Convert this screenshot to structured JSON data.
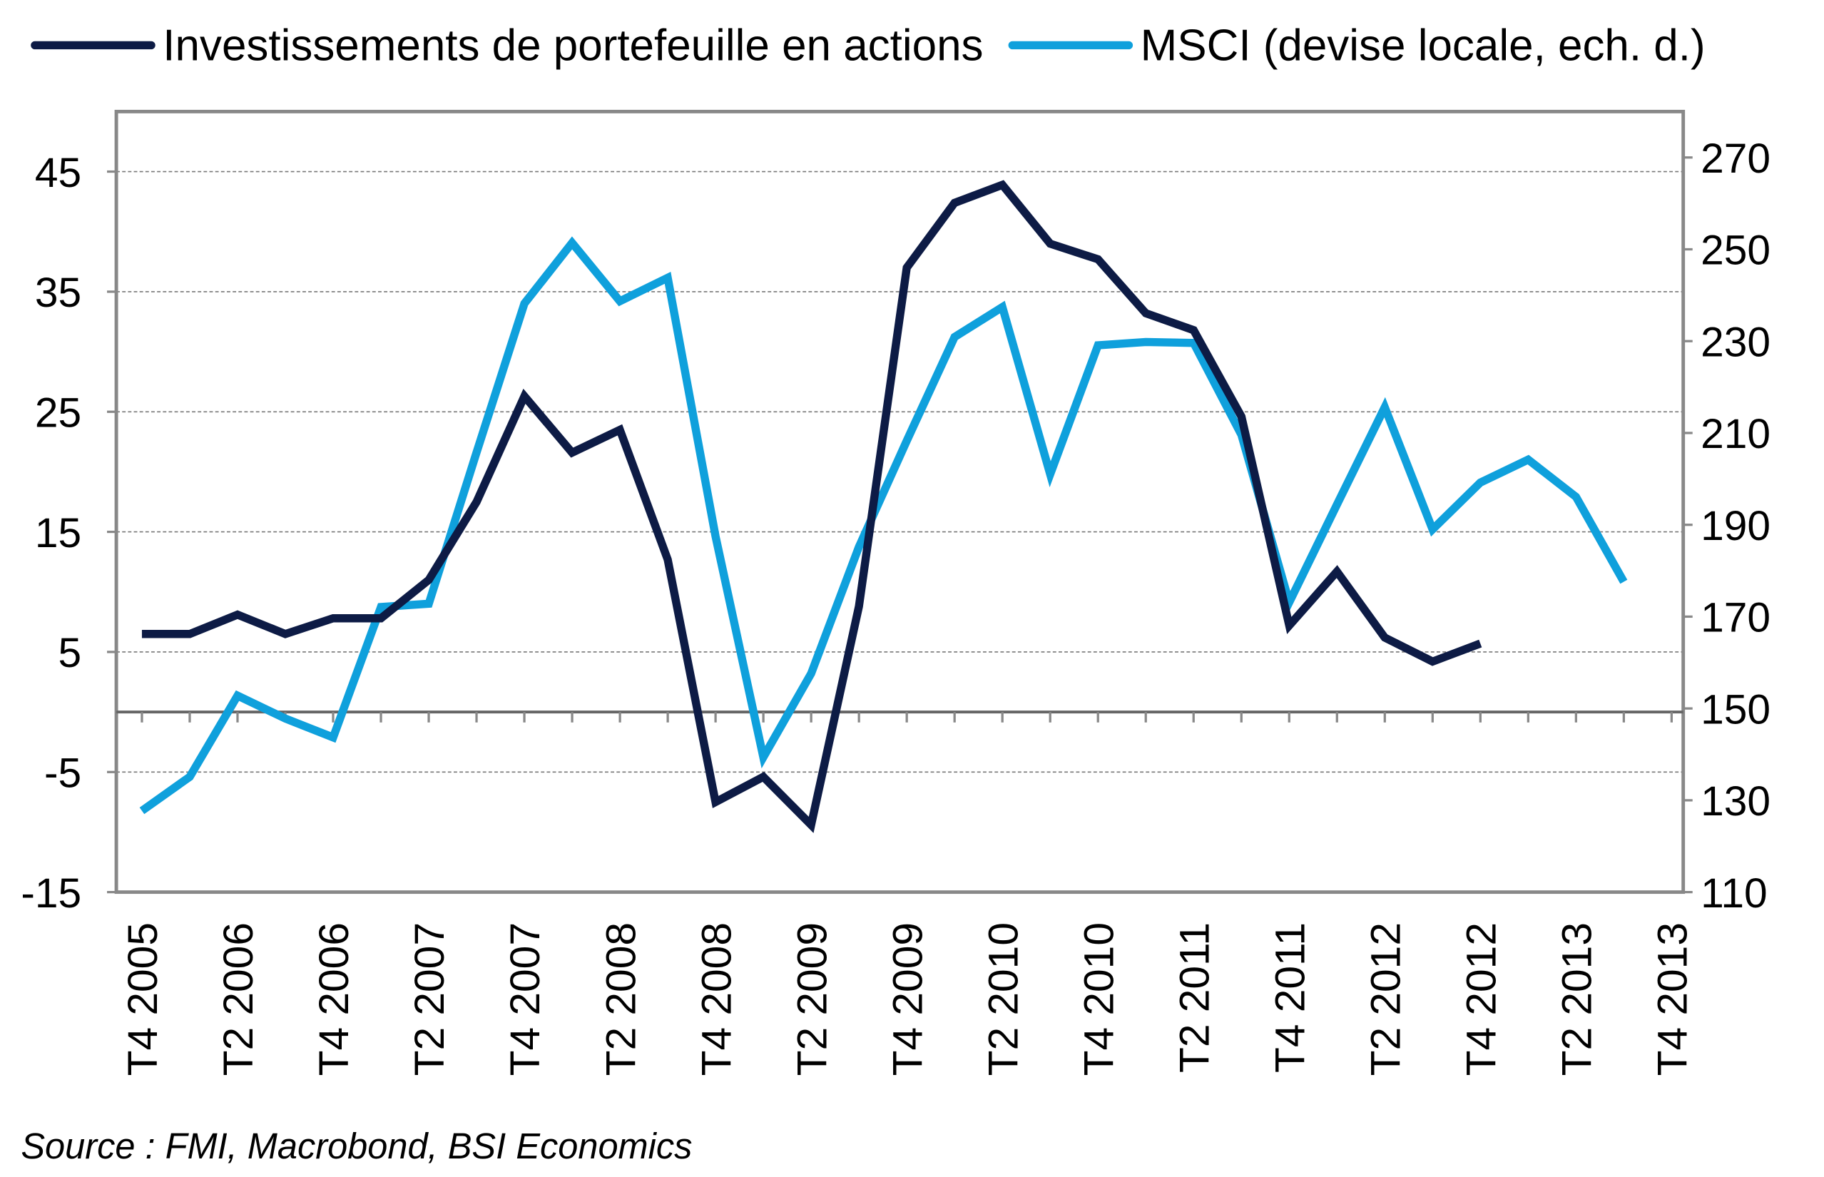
{
  "chart_data": {
    "type": "line",
    "categories": [
      "T4 2005",
      null,
      "T2 2006",
      null,
      "T4 2006",
      null,
      "T2 2007",
      null,
      "T4 2007",
      null,
      "T2 2008",
      null,
      "T4 2008",
      null,
      "T2 2009",
      null,
      "T4 2009",
      null,
      "T2 2010",
      null,
      "T4 2010",
      null,
      "T2 2011",
      null,
      "T4 2011",
      null,
      "T2 2012",
      null,
      "T4 2012",
      null,
      "T2 2013",
      null,
      "T4 2013"
    ],
    "series": [
      {
        "name": "Investissements de portefeuille en actions",
        "color": "#0d1b45",
        "axis": "y",
        "values": [
          6.5,
          6.5,
          8.1,
          6.5,
          7.8,
          7.8,
          11.0,
          17.5,
          26.3,
          21.6,
          23.5,
          12.7,
          -7.5,
          -5.4,
          -9.4,
          8.8,
          37.0,
          42.4,
          43.9,
          39.0,
          37.7,
          33.2,
          31.8,
          24.6,
          7.2,
          11.7,
          6.2,
          4.2,
          5.7,
          null,
          null,
          null,
          null
        ]
      },
      {
        "name": "MSCI (devise locale, ech. d.)",
        "color": "#0fa0dc",
        "axis": "y2",
        "values": [
          127.7,
          135.1,
          152.8,
          147.8,
          143.7,
          172.1,
          172.8,
          205.8,
          238.2,
          251.4,
          238.7,
          243.8,
          187.5,
          139.4,
          157.6,
          185.2,
          208.3,
          230.9,
          237.4,
          201.0,
          229.1,
          229.8,
          229.6,
          209.6,
          173.1,
          194.4,
          215.6,
          189.0,
          199.2,
          204.2,
          196.1,
          177.6,
          null
        ]
      }
    ],
    "ylim": [
      -15,
      50
    ],
    "yticks": [
      -15,
      -5,
      5,
      15,
      25,
      35,
      45
    ],
    "y2lim": [
      110,
      280
    ],
    "y2ticks": [
      110,
      130,
      150,
      170,
      190,
      210,
      230,
      250,
      270
    ],
    "grid": true,
    "source": "Source : FMI, Macrobond, BSI Economics"
  }
}
